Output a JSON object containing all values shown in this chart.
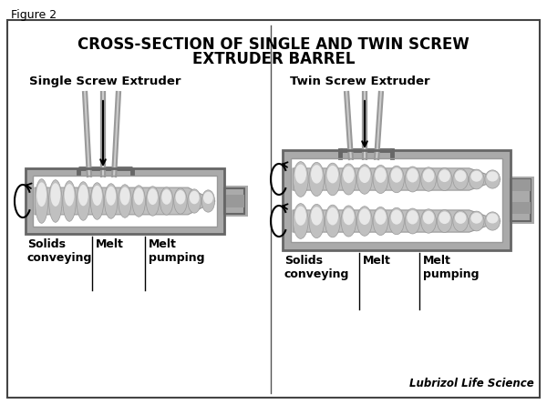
{
  "title_line1": "CROSS-SECTION OF SINGLE AND TWIN SCREW",
  "title_line2": "EXTRUDER BARREL",
  "figure_label": "Figure 2",
  "watermark": "Lubrizol Life Science",
  "single_label": "Single Screw Extruder",
  "twin_label": "Twin Screw Extruder",
  "zone_labels": [
    "Solids\nconveying",
    "Melt",
    "Melt\npumping"
  ],
  "bg_color": "#ffffff",
  "barrel_gray": "#aaaaaa",
  "barrel_mid": "#999999",
  "barrel_dark": "#666666",
  "barrel_light": "#cccccc",
  "screw_gray": "#c0c0c0",
  "screw_light": "#e8e8e8",
  "screw_highlight": "#f5f5f5",
  "feed_gray": "#999999",
  "text_color": "#000000",
  "divider_color": "#555555",
  "border_color": "#444444",
  "title_fontsize": 12,
  "label_fontsize": 9.5,
  "zone_fontsize": 9
}
